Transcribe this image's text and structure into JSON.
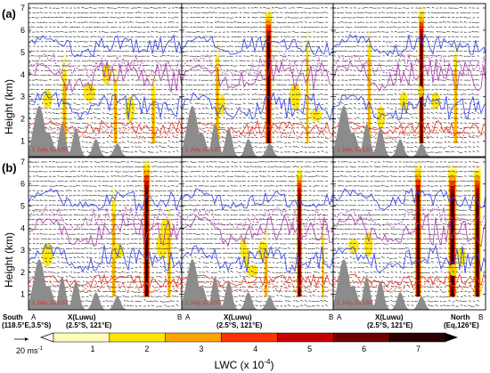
{
  "figure": {
    "panel_labels": [
      "(a)",
      "(b)"
    ],
    "y_axis_label": "Height (km)",
    "y_ticks": [
      "1",
      "2",
      "3",
      "4",
      "5",
      "6",
      "7"
    ],
    "y_range_km": [
      0.3,
      7.2
    ],
    "panel_stamps": [
      [
        "1 July, 03 LST",
        "1 July, 02 LST",
        "1 July, 03 LST"
      ],
      [
        "1 July, 02 LST",
        "1 July, 02 LST",
        "1 July, 03 LST"
      ]
    ],
    "cross_section": {
      "south_label": "South",
      "south_coord": "(118.5°E,3.5°S)",
      "north_label": "North",
      "north_coord": "(Eq,126°E)",
      "end_a": "A",
      "end_b": "B",
      "luwu_name": "X(Luwu)",
      "luwu_coord": "(2.5°S, 121°E)"
    },
    "reference_vector_label": "20 ms",
    "reference_vector_unit_exp": "-1",
    "colorbar": {
      "title": "LWC (x 10",
      "title_exp": "-4",
      "title_close": ")",
      "tick_labels": [
        "1",
        "2",
        "3",
        "4",
        "5",
        "6",
        "7"
      ],
      "colors": [
        "#fffbb8",
        "#ffe600",
        "#ffa500",
        "#ff3200",
        "#c80000",
        "#6e0000",
        "#2a0000"
      ]
    },
    "contour_colors": {
      "blue": "#3344ee",
      "purple": "#b03cb0",
      "red": "#ee3322",
      "terrain": "#8c8c8c"
    }
  }
}
